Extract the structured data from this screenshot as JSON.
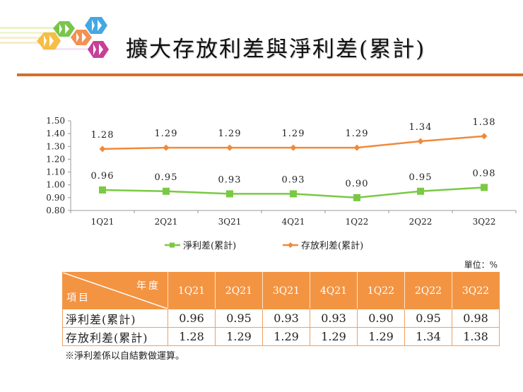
{
  "header": {
    "title": "擴大存放利差與淨利差(累計)",
    "accent_color": "#d56f2a"
  },
  "logo": {
    "icon": "company-logo-hexagons",
    "colors": [
      "#f5b731",
      "#6cbf3b",
      "#ef7e36",
      "#2f9fe0",
      "#c12b8c"
    ]
  },
  "chart_data": {
    "type": "line",
    "title": "",
    "xlabel": "",
    "ylabel": "",
    "categories": [
      "1Q21",
      "2Q21",
      "3Q21",
      "4Q21",
      "1Q22",
      "2Q22",
      "3Q22"
    ],
    "series": [
      {
        "name": "淨利差(累計)",
        "color": "#7ac943",
        "marker": "square",
        "values": [
          0.96,
          0.95,
          0.93,
          0.93,
          0.9,
          0.95,
          0.98
        ]
      },
      {
        "name": "存放利差(累計)",
        "color": "#ef8a3c",
        "marker": "diamond",
        "values": [
          1.28,
          1.29,
          1.29,
          1.29,
          1.29,
          1.34,
          1.38
        ]
      }
    ],
    "ylim": [
      0.8,
      1.5
    ],
    "yticks": [
      "1.50",
      "1.40",
      "1.30",
      "1.20",
      "1.10",
      "1.00",
      "0.90",
      "0.80"
    ],
    "data_labels": {
      "net_interest_margin": [
        "0.96",
        "0.95",
        "0.93",
        "0.93",
        "0.90",
        "0.95",
        "0.98"
      ],
      "deposit_loan_spread": [
        "1.28",
        "1.29",
        "1.29",
        "1.29",
        "1.29",
        "1.34",
        "1.38"
      ]
    },
    "grid": false,
    "legend_position": "bottom"
  },
  "legend": {
    "items": [
      {
        "label": "淨利差(累計)",
        "color": "#7ac943"
      },
      {
        "label": "存放利差(累計)",
        "color": "#ef8a3c"
      }
    ]
  },
  "table": {
    "unit": "單位：%",
    "corner_col_label": "年度",
    "corner_row_label": "項目",
    "columns": [
      "1Q21",
      "2Q21",
      "3Q21",
      "4Q21",
      "1Q22",
      "2Q22",
      "3Q22"
    ],
    "rows": [
      {
        "label": "淨利差(累計)",
        "values": [
          "0.96",
          "0.95",
          "0.93",
          "0.93",
          "0.90",
          "0.95",
          "0.98"
        ]
      },
      {
        "label": "存放利差(累計)",
        "values": [
          "1.28",
          "1.29",
          "1.29",
          "1.29",
          "1.29",
          "1.34",
          "1.38"
        ]
      }
    ],
    "header_color": "#f39443"
  },
  "footnote": "※淨利差係以自結數做運算。"
}
